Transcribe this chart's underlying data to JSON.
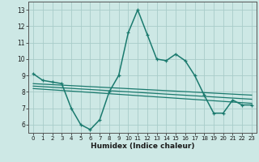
{
  "x": [
    0,
    1,
    2,
    3,
    4,
    5,
    6,
    7,
    8,
    9,
    10,
    11,
    12,
    13,
    14,
    15,
    16,
    17,
    18,
    19,
    20,
    21,
    22,
    23
  ],
  "y_main": [
    9.1,
    8.7,
    8.6,
    8.5,
    7.0,
    6.0,
    5.7,
    6.3,
    8.0,
    9.0,
    11.6,
    13.0,
    11.5,
    10.0,
    9.9,
    10.3,
    9.9,
    9.0,
    7.8,
    6.7,
    6.7,
    7.5,
    7.2,
    7.2
  ],
  "trend_lines": [
    {
      "x0": 0,
      "y0": 8.5,
      "x1": 23,
      "y1": 7.8
    },
    {
      "x0": 0,
      "y0": 8.35,
      "x1": 23,
      "y1": 7.55
    },
    {
      "x0": 0,
      "y0": 8.2,
      "x1": 23,
      "y1": 7.3
    }
  ],
  "line_color": "#1a7a6e",
  "bg_color": "#cde8e5",
  "grid_color": "#a8ccc9",
  "xlabel": "Humidex (Indice chaleur)",
  "ylim": [
    5.5,
    13.5
  ],
  "xlim": [
    -0.5,
    23.5
  ],
  "yticks": [
    6,
    7,
    8,
    9,
    10,
    11,
    12,
    13
  ],
  "xticks": [
    0,
    1,
    2,
    3,
    4,
    5,
    6,
    7,
    8,
    9,
    10,
    11,
    12,
    13,
    14,
    15,
    16,
    17,
    18,
    19,
    20,
    21,
    22,
    23
  ]
}
